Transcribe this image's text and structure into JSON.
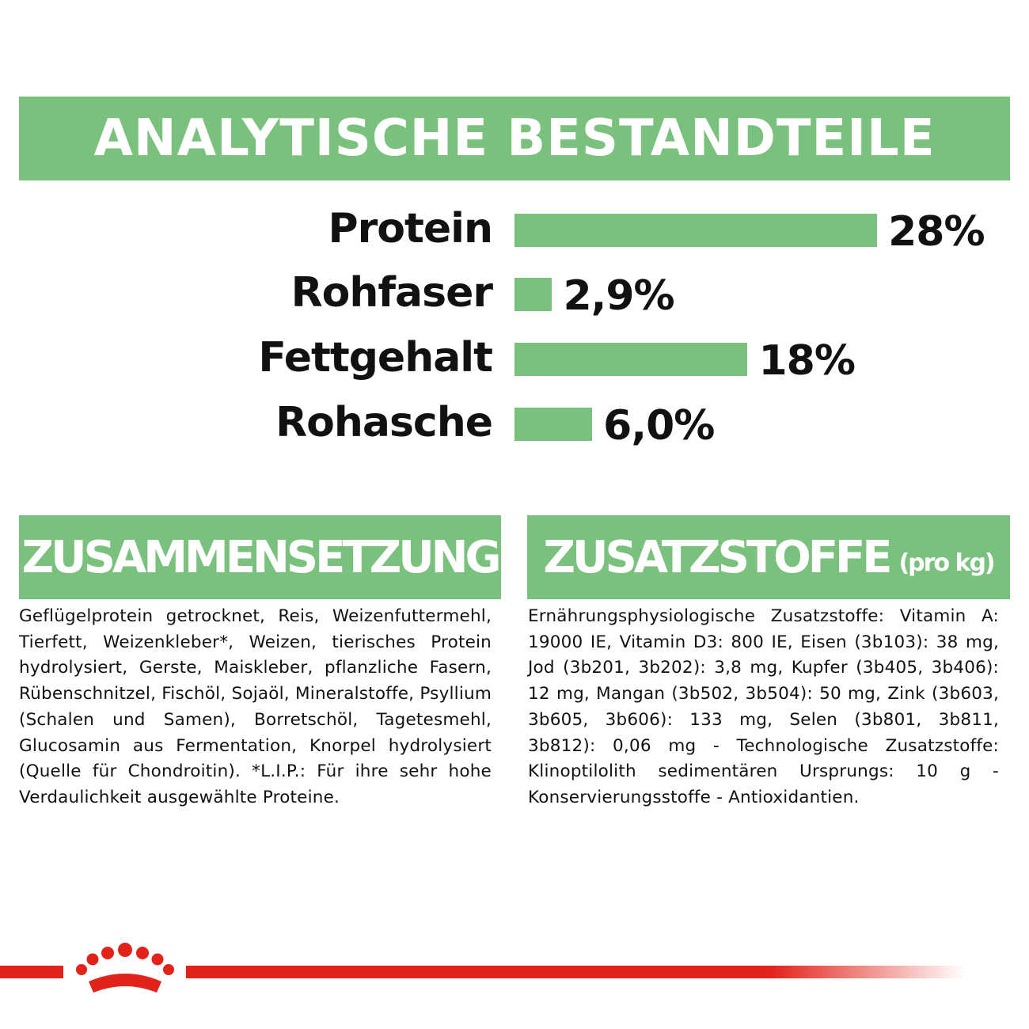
{
  "header": {
    "title": "ANALYTISCHE BESTANDTEILE"
  },
  "chart_data": {
    "type": "bar",
    "categories": [
      "Protein",
      "Rohfaser",
      "Fettgehalt",
      "Rohasche"
    ],
    "values": [
      28,
      2.9,
      18,
      6.0
    ],
    "value_labels": [
      "28%",
      "2,9%",
      "18%",
      "6,0%"
    ],
    "color": "#7bc17e"
  },
  "sections": [
    {
      "title": "ZUSAMMENSETZUNG",
      "text": "Geflügelprotein getrocknet, Reis, Weizenfuttermehl, Tierfett, Weizenkleber*, Weizen, tierisches Protein hydrolysiert, Gerste, Maiskleber, pflanzliche Fasern, Rübenschnitzel, Fischöl, Sojaöl, Mineralstoffe, Psyllium (Schalen und Samen), Borretschöl, Tagetesmehl, Glucosamin aus Fermentation, Knorpel hydrolysiert (Quelle für Chondroitin). *L.I.P.: Für ihre sehr hohe Verdaulichkeit ausgewählte Proteine."
    },
    {
      "title": "ZUSATZSTOFFE",
      "subtitle": "(pro kg)",
      "text": "Ernährungsphysiologische Zusatzstoffe: Vitamin A: 19000 IE, Vitamin D3: 800 IE, Eisen (3b103): 38 mg, Jod (3b201, 3b202): 3,8 mg, Kupfer (3b405, 3b406): 12 mg, Mangan (3b502, 3b504): 50 mg, Zink (3b603, 3b605, 3b606): 133 mg, Selen (3b801, 3b811, 3b812): 0,06 mg - Technologische Zusatzstoffe: Klinoptilolith sedimentären Ursprungs: 10 g - Konservierungsstoffe - Antioxidantien."
    }
  ]
}
